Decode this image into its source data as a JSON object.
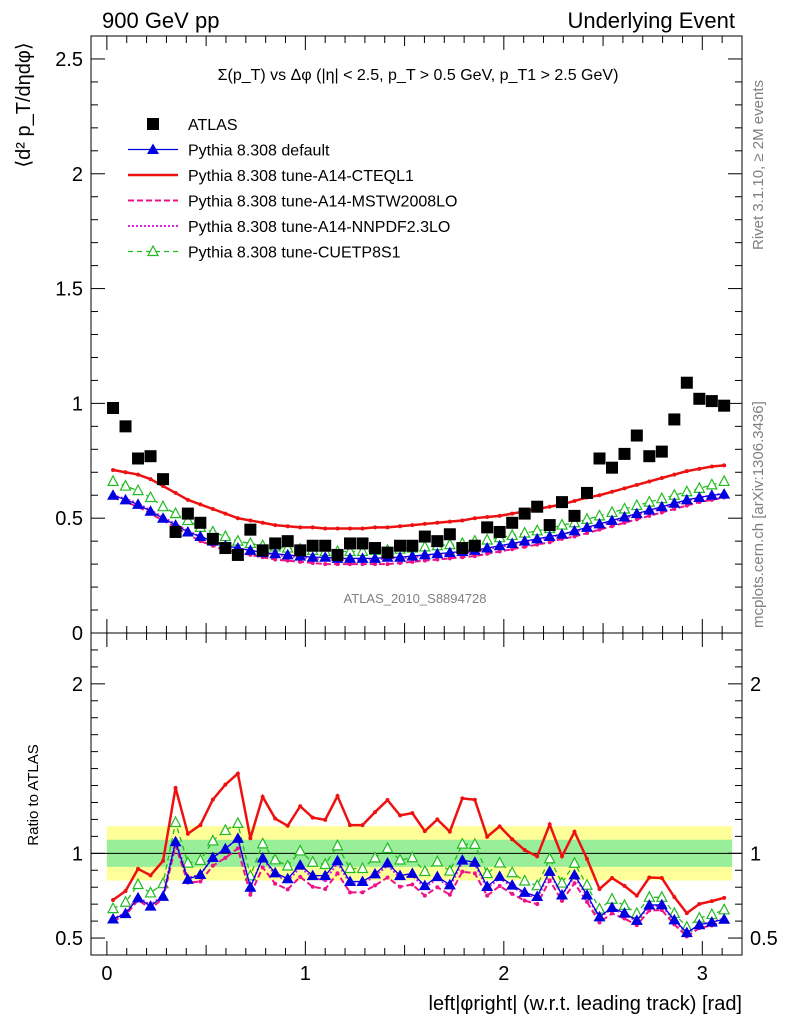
{
  "header": {
    "left": "900 GeV pp",
    "right": "Underlying Event",
    "watermark": "ATLAS_2010_S8894728",
    "side_top": "Rivet 3.1.10, ≥ 2M events",
    "side_bottom": "mcplots.cern.ch [arXiv:1306.3436]"
  },
  "colors": {
    "atlas": "#000000",
    "default": "#0000e0",
    "cteql1": "#ee1111",
    "mstw": "#ee1188",
    "nnpdf": "#dd22dd",
    "cuetp8s1": "#22bb22",
    "band_inner": "#99ee99",
    "band_outer": "#ffff99"
  },
  "chart_data": [
    {
      "type": "scatter",
      "title": "Σ(p_T) vs Δφ (|η| < 2.5, p_T > 0.5 GeV, p_T1 > 2.5 GeV)",
      "ylabel": "⟨d² p_T/dηdφ⟩",
      "ylim": [
        0,
        2.6
      ],
      "xlim": [
        -0.08,
        3.2
      ],
      "yticks": [
        "0",
        "0.5",
        "1",
        "1.5",
        "2",
        "2.5"
      ],
      "x": [
        0.031,
        0.094,
        0.157,
        0.22,
        0.283,
        0.346,
        0.408,
        0.471,
        0.534,
        0.597,
        0.66,
        0.723,
        0.785,
        0.848,
        0.911,
        0.974,
        1.037,
        1.1,
        1.162,
        1.225,
        1.288,
        1.351,
        1.414,
        1.477,
        1.539,
        1.602,
        1.665,
        1.728,
        1.791,
        1.854,
        1.916,
        1.979,
        2.042,
        2.105,
        2.168,
        2.231,
        2.293,
        2.356,
        2.419,
        2.482,
        2.545,
        2.608,
        2.67,
        2.733,
        2.796,
        2.859,
        2.922,
        2.985,
        3.048,
        3.11
      ],
      "legend_placement": "top-left",
      "series": [
        {
          "name": "ATLAS",
          "key": "atlas",
          "values": [
            0.98,
            0.9,
            0.76,
            0.77,
            0.67,
            0.44,
            0.52,
            0.48,
            0.41,
            0.37,
            0.34,
            0.45,
            0.36,
            0.39,
            0.4,
            0.36,
            0.38,
            0.38,
            0.34,
            0.39,
            0.39,
            0.37,
            0.35,
            0.38,
            0.38,
            0.42,
            0.4,
            0.43,
            0.37,
            0.38,
            0.46,
            0.44,
            0.48,
            0.52,
            0.55,
            0.47,
            0.57,
            0.51,
            0.61,
            0.76,
            0.72,
            0.78,
            0.86,
            0.77,
            0.79,
            0.93,
            1.09,
            1.02,
            1.01,
            0.99
          ]
        },
        {
          "name": "Pythia 8.308 default",
          "key": "default",
          "values": [
            0.6,
            0.58,
            0.56,
            0.53,
            0.5,
            0.47,
            0.44,
            0.42,
            0.4,
            0.38,
            0.37,
            0.36,
            0.35,
            0.345,
            0.34,
            0.335,
            0.33,
            0.33,
            0.325,
            0.325,
            0.325,
            0.325,
            0.33,
            0.33,
            0.335,
            0.34,
            0.345,
            0.35,
            0.355,
            0.36,
            0.37,
            0.38,
            0.39,
            0.4,
            0.41,
            0.42,
            0.43,
            0.445,
            0.46,
            0.475,
            0.49,
            0.505,
            0.52,
            0.535,
            0.55,
            0.565,
            0.58,
            0.59,
            0.6,
            0.605
          ]
        },
        {
          "name": "Pythia 8.308 tune-A14-CTEQL1",
          "key": "cteql1",
          "values": [
            0.71,
            0.7,
            0.69,
            0.67,
            0.64,
            0.61,
            0.58,
            0.56,
            0.54,
            0.52,
            0.5,
            0.49,
            0.48,
            0.47,
            0.465,
            0.46,
            0.46,
            0.455,
            0.455,
            0.455,
            0.455,
            0.46,
            0.46,
            0.465,
            0.47,
            0.475,
            0.48,
            0.485,
            0.49,
            0.5,
            0.505,
            0.51,
            0.52,
            0.53,
            0.54,
            0.55,
            0.56,
            0.575,
            0.59,
            0.6,
            0.615,
            0.63,
            0.645,
            0.66,
            0.675,
            0.69,
            0.705,
            0.715,
            0.725,
            0.73
          ]
        },
        {
          "name": "Pythia 8.308 tune-A14-MSTW2008LO",
          "key": "mstw",
          "values": [
            0.59,
            0.57,
            0.55,
            0.52,
            0.49,
            0.46,
            0.43,
            0.4,
            0.38,
            0.36,
            0.35,
            0.34,
            0.33,
            0.32,
            0.315,
            0.31,
            0.305,
            0.3,
            0.3,
            0.3,
            0.3,
            0.3,
            0.3,
            0.305,
            0.31,
            0.315,
            0.32,
            0.325,
            0.33,
            0.335,
            0.345,
            0.355,
            0.365,
            0.375,
            0.385,
            0.395,
            0.41,
            0.42,
            0.435,
            0.45,
            0.465,
            0.48,
            0.495,
            0.51,
            0.525,
            0.54,
            0.555,
            0.57,
            0.58,
            0.59
          ]
        },
        {
          "name": "Pythia 8.308 tune-A14-NNPDF2.3LO",
          "key": "nnpdf",
          "values": [
            0.6,
            0.585,
            0.565,
            0.535,
            0.505,
            0.475,
            0.445,
            0.42,
            0.4,
            0.38,
            0.37,
            0.36,
            0.35,
            0.34,
            0.335,
            0.33,
            0.325,
            0.32,
            0.32,
            0.32,
            0.32,
            0.32,
            0.325,
            0.325,
            0.33,
            0.335,
            0.34,
            0.345,
            0.35,
            0.355,
            0.365,
            0.375,
            0.385,
            0.395,
            0.405,
            0.415,
            0.43,
            0.44,
            0.455,
            0.47,
            0.485,
            0.5,
            0.515,
            0.53,
            0.545,
            0.56,
            0.575,
            0.59,
            0.6,
            0.61
          ]
        },
        {
          "name": "Pythia 8.308 tune-CUETP8S1",
          "key": "cuetp8s1",
          "values": [
            0.66,
            0.64,
            0.62,
            0.59,
            0.55,
            0.52,
            0.49,
            0.46,
            0.44,
            0.42,
            0.4,
            0.39,
            0.38,
            0.375,
            0.37,
            0.365,
            0.36,
            0.355,
            0.355,
            0.355,
            0.355,
            0.36,
            0.36,
            0.365,
            0.37,
            0.375,
            0.38,
            0.385,
            0.39,
            0.4,
            0.405,
            0.415,
            0.425,
            0.435,
            0.445,
            0.455,
            0.47,
            0.48,
            0.495,
            0.51,
            0.525,
            0.54,
            0.555,
            0.57,
            0.585,
            0.6,
            0.615,
            0.63,
            0.645,
            0.66
          ]
        }
      ]
    },
    {
      "type": "line",
      "ylabel": "Ratio to ATLAS",
      "xlabel": "left|φright| (w.r.t. leading track) [rad]",
      "ylim": [
        0.4,
        2.3
      ],
      "xlim": [
        -0.08,
        3.2
      ],
      "xticks": [
        "0",
        "1",
        "2",
        "3"
      ],
      "yticks": [
        "0.5",
        "1",
        "2"
      ],
      "band_inner_halfwidth": 0.08,
      "band_outer_halfwidth": 0.16
    }
  ]
}
